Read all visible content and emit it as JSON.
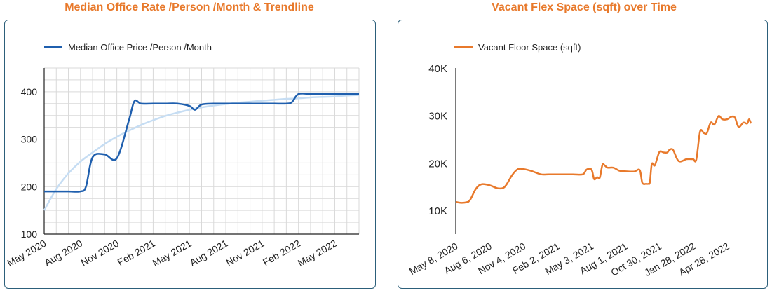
{
  "charts": [
    {
      "title": "Median Office Rate /Person /Month & Trendline",
      "legend": "Median Office Price /Person /Month",
      "color": "#1f5fae",
      "trend_color": "#c6ddf3",
      "y_ticks": [
        "100",
        "200",
        "300",
        "400"
      ],
      "x_ticks": [
        "May 2020",
        "Aug 2020",
        "Nov 2020",
        "Feb 2021",
        "May 2021",
        "Aug 2021",
        "Nov 2021",
        "Feb 2022",
        "May 2022"
      ]
    },
    {
      "title": "Vacant Flex Space (sqft) over Time",
      "legend": "Vacant Floor Space (sqft)",
      "color": "#e8792b",
      "y_ticks": [
        "10K",
        "20K",
        "30K",
        "40K"
      ],
      "x_ticks": [
        "May 8, 2020",
        "Aug 6, 2020",
        "Nov 4, 2020",
        "Feb 2, 2021",
        "May 3, 2021",
        "Aug 1, 2021",
        "Oct 30, 2021",
        "Jan 28, 2022",
        "Apr 28, 2022"
      ]
    }
  ],
  "chart_data": [
    {
      "type": "line",
      "title": "Median Office Rate /Person /Month & Trendline",
      "ylim": [
        100,
        450
      ],
      "grid": true,
      "legend_position": "top-left",
      "x_range": [
        "2020-05",
        "2022-07"
      ],
      "series": [
        {
          "name": "Median Office Price /Person /Month",
          "x": [
            "2020-05",
            "2020-06",
            "2020-07",
            "2020-08",
            "2020-08",
            "2020-09",
            "2020-10",
            "2020-11",
            "2020-12",
            "2020-12",
            "2021-01",
            "2021-02",
            "2021-03",
            "2021-04",
            "2021-05",
            "2021-05",
            "2021-06",
            "2021-07",
            "2021-08",
            "2021-09",
            "2021-10",
            "2021-11",
            "2021-12",
            "2022-01",
            "2022-01",
            "2022-02",
            "2022-03",
            "2022-04",
            "2022-05",
            "2022-06",
            "2022-07"
          ],
          "values": [
            190,
            190,
            190,
            190,
            200,
            262,
            268,
            260,
            340,
            380,
            375,
            375,
            375,
            375,
            370,
            362,
            373,
            375,
            375,
            375,
            375,
            375,
            375,
            375,
            378,
            395,
            395,
            395,
            395,
            395,
            395
          ]
        },
        {
          "name": "Trendline",
          "x": [
            "2020-05",
            "2020-06",
            "2020-07",
            "2020-08",
            "2020-09",
            "2020-10",
            "2020-11",
            "2020-12",
            "2021-01",
            "2021-02",
            "2021-03",
            "2021-04",
            "2021-05",
            "2021-06",
            "2021-07",
            "2021-08",
            "2021-09",
            "2021-10",
            "2021-11",
            "2021-12",
            "2022-01",
            "2022-02",
            "2022-03",
            "2022-04",
            "2022-05",
            "2022-06",
            "2022-07"
          ],
          "values": [
            150,
            195,
            228,
            253,
            272,
            290,
            305,
            318,
            330,
            340,
            349,
            356,
            362,
            367,
            371,
            374,
            377,
            379,
            381,
            383,
            385,
            386,
            388,
            389,
            390,
            392,
            393
          ]
        }
      ]
    },
    {
      "type": "line",
      "title": "Vacant Flex Space (sqft) over Time",
      "ylim": [
        5000,
        40000
      ],
      "grid": false,
      "legend_position": "top-left",
      "x_range": [
        "2020-05-08",
        "2022-06-30"
      ],
      "series": [
        {
          "name": "Vacant Floor Space (sqft)",
          "x": [
            "2020-05-08",
            "2020-05-20",
            "2020-06-05",
            "2020-06-15",
            "2020-06-30",
            "2020-07-15",
            "2020-08-06",
            "2020-08-25",
            "2020-09-10",
            "2020-09-20",
            "2020-10-05",
            "2020-10-20",
            "2020-11-04",
            "2020-11-25",
            "2020-12-20",
            "2021-01-10",
            "2021-02-02",
            "2021-03-15",
            "2021-04-10",
            "2021-04-20",
            "2021-05-03",
            "2021-05-10",
            "2021-05-18",
            "2021-05-25",
            "2021-06-01",
            "2021-06-08",
            "2021-06-15",
            "2021-06-30",
            "2021-07-15",
            "2021-07-25",
            "2021-08-10",
            "2021-08-25",
            "2021-09-08",
            "2021-09-15",
            "2021-09-25",
            "2021-10-01",
            "2021-10-05",
            "2021-10-10",
            "2021-10-18",
            "2021-10-30",
            "2021-11-10",
            "2021-11-20",
            "2021-11-25",
            "2021-12-05",
            "2021-12-20",
            "2022-01-10",
            "2022-01-22",
            "2022-01-28",
            "2022-02-05",
            "2022-02-15",
            "2022-02-25",
            "2022-03-05",
            "2022-03-15",
            "2022-03-25",
            "2022-04-05",
            "2022-04-15",
            "2022-04-28",
            "2022-05-08",
            "2022-05-18",
            "2022-05-28",
            "2022-06-10",
            "2022-06-20",
            "2022-06-25",
            "2022-06-30"
          ],
          "values": [
            11800,
            11600,
            11700,
            12200,
            14500,
            15500,
            15300,
            14700,
            14700,
            15500,
            17500,
            18700,
            18700,
            18300,
            17600,
            17600,
            17600,
            17600,
            17600,
            18600,
            18600,
            16600,
            17000,
            16900,
            19600,
            19400,
            19000,
            19000,
            18400,
            18300,
            18200,
            18200,
            18500,
            15800,
            15600,
            15600,
            16000,
            19800,
            19500,
            22300,
            22200,
            22200,
            22700,
            22800,
            20400,
            20800,
            20800,
            20800,
            20700,
            26600,
            26300,
            26300,
            28500,
            28100,
            29900,
            29200,
            29200,
            29700,
            29600,
            27600,
            28500,
            28300,
            29200,
            28300
          ]
        }
      ]
    }
  ]
}
